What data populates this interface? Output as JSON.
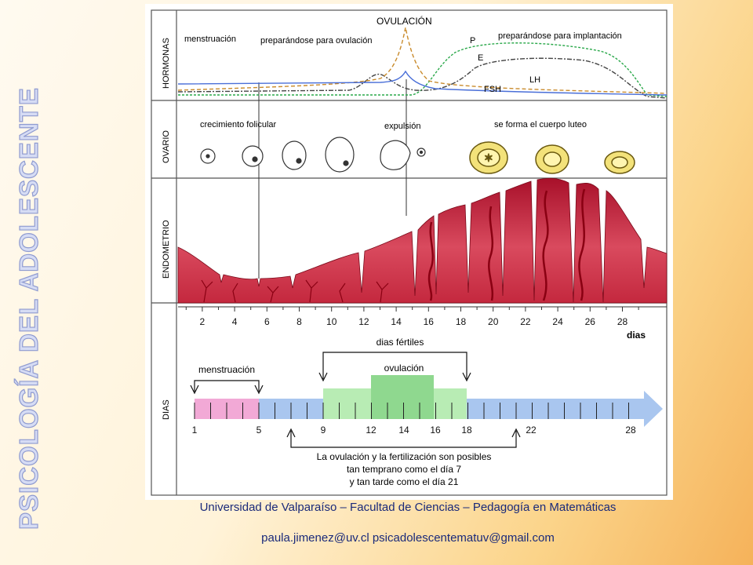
{
  "side_title": "PSICOLOGÍA DEL ADOLESCENTE",
  "sections": {
    "hormonas": "HORMONAS",
    "ovario": "OVARIO",
    "endometrio": "ENDOMETRIO",
    "dias": "DIAS"
  },
  "hormones": {
    "menstruacion": "menstruación",
    "preparandose_ovulacion": "preparándose para ovulación",
    "ovulacion": "OVULACIÓN",
    "preparandose_implantacion": "preparándose para implantación",
    "p": "P",
    "e": "E",
    "lh": "LH",
    "fsh": "FSH"
  },
  "ovary": {
    "crecimiento": "crecimiento folicular",
    "expulsion": "expulsión",
    "cuerpo_luteo": "se forma el cuerpo luteo"
  },
  "day_axis": {
    "ticks": [
      "2",
      "4",
      "6",
      "8",
      "10",
      "12",
      "14",
      "16",
      "18",
      "20",
      "22",
      "24",
      "26",
      "28"
    ],
    "unit": "dias"
  },
  "timeline": {
    "dias_fertiles": "dias fértiles",
    "menstruacion": "menstruación",
    "ovulacion": "ovulación",
    "numbers": [
      "1",
      "5",
      "9",
      "12",
      "14",
      "16",
      "18",
      "22",
      "28"
    ],
    "note_line1": "La ovulación y la fertilización son posibles",
    "note_line2": "tan temprano como el día 7",
    "note_line3": "y tan tarde como el día 21",
    "colors": {
      "menstruation": "#f2a9d6",
      "pre": "#a9c6ef",
      "fertile": "#b8ecb4",
      "ovulation": "#8fd88f",
      "post": "#a9c6ef"
    }
  },
  "footer": {
    "line1": "Universidad de Valparaíso – Facultad de Ciencias – Pedagogía en Matemáticas",
    "line2": "paula.jimenez@uv.cl  psicadolescentematuv@gmail.com"
  }
}
